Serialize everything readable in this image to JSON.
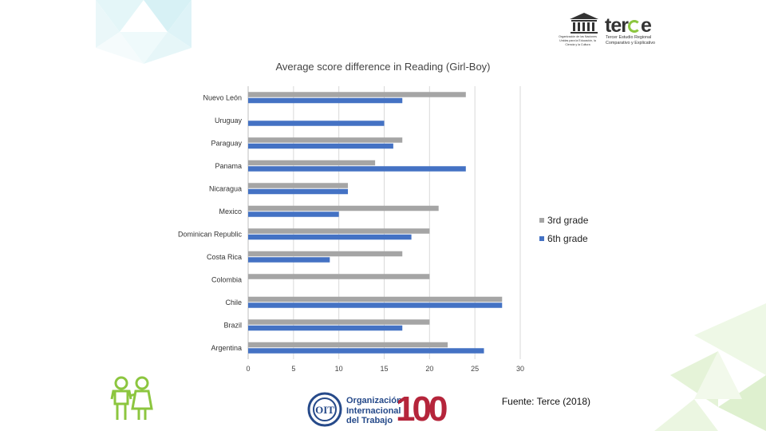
{
  "chart_data": {
    "type": "bar",
    "orientation": "horizontal",
    "title": "Average score difference in Reading (Girl-Boy)",
    "categories": [
      "Nuevo León",
      "Uruguay",
      "Paraguay",
      "Panama",
      "Nicaragua",
      "Mexico",
      "Dominican Republic",
      "Costa Rica",
      "Colombia",
      "Chile",
      "Brazil",
      "Argentina"
    ],
    "series": [
      {
        "name": "3rd grade",
        "color": "#a5a5a5",
        "values": [
          24,
          0,
          17,
          14,
          11,
          21,
          20,
          17,
          20,
          28,
          20,
          22
        ]
      },
      {
        "name": "6th grade",
        "color": "#4472c4",
        "values": [
          17,
          15,
          16,
          24,
          11,
          10,
          18,
          9,
          0,
          28,
          17,
          26
        ]
      }
    ],
    "xlim": [
      0,
      30
    ],
    "xticks": [
      "0",
      "5",
      "10",
      "15",
      "20",
      "25",
      "30"
    ],
    "xlabel": "",
    "ylabel": "",
    "grid": true,
    "legend_position": "right"
  },
  "source_text": "Fuente: Terce (2018)",
  "logos": {
    "unesco_caption": "Organización de las Naciones Unidas para la Educación, la Ciencia y la Cultura",
    "terce_name_pre": "ter",
    "terce_name_post": "e",
    "terce_subtitle": "Tercer Estudio Regional Comparativo y Explicativo",
    "oit_line1": "Organización",
    "oit_line2": "Internacional",
    "oit_line3": "del Trabajo",
    "oit_centenary": "100"
  },
  "colors": {
    "series_3rd": "#a5a5a5",
    "series_6th": "#4472c4",
    "accent_green": "#8cc63f",
    "ilo_blue": "#264a8a",
    "ilo_red": "#b5253b"
  }
}
